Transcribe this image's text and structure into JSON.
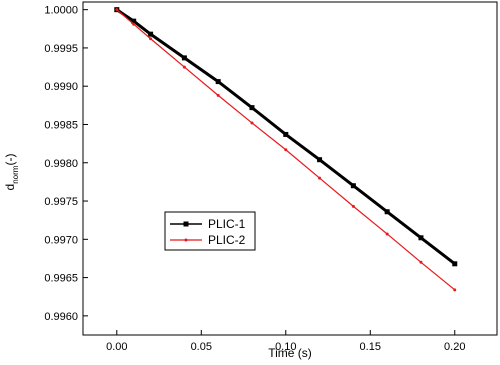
{
  "chart_data": {
    "type": "line",
    "xlabel": "Time (s)",
    "ylabel": [
      "d",
      "norm",
      "(-)"
    ],
    "x": [
      0,
      0.01,
      0.02,
      0.04,
      0.06,
      0.08,
      0.1,
      0.12,
      0.14,
      0.16,
      0.18,
      0.2
    ],
    "series": [
      {
        "name": "PLIC-1",
        "color": "#000000",
        "marker": "square",
        "width": 3,
        "values": [
          1.0,
          0.99985,
          0.99968,
          0.99937,
          0.99906,
          0.99872,
          0.99837,
          0.99804,
          0.9977,
          0.99736,
          0.99702,
          0.99668
        ]
      },
      {
        "name": "PLIC-2",
        "color": "#e8191c",
        "marker": "dot",
        "width": 1.2,
        "values": [
          1.0,
          0.99981,
          0.99962,
          0.99925,
          0.99888,
          0.99852,
          0.99817,
          0.9978,
          0.99743,
          0.99707,
          0.9967,
          0.99634
        ]
      }
    ],
    "xlim": [
      -0.02,
      0.225
    ],
    "ylim": [
      0.99575,
      1.0001
    ],
    "xticks": [
      {
        "value": 0,
        "label": "0.00"
      },
      {
        "value": 0.05,
        "label": "0.05"
      },
      {
        "value": 0.1,
        "label": "0.10"
      },
      {
        "value": 0.15,
        "label": "0.15"
      },
      {
        "value": 0.2,
        "label": "0.20"
      }
    ],
    "yticks": [
      {
        "value": 0.996,
        "label": "0.9960"
      },
      {
        "value": 0.9965,
        "label": "0.9965"
      },
      {
        "value": 0.997,
        "label": "0.9970"
      },
      {
        "value": 0.9975,
        "label": "0.9975"
      },
      {
        "value": 0.998,
        "label": "0.9980"
      },
      {
        "value": 0.9985,
        "label": "0.9985"
      },
      {
        "value": 0.999,
        "label": "0.9990"
      },
      {
        "value": 0.9995,
        "label": "0.9995"
      },
      {
        "value": 1.0,
        "label": "1.0000"
      }
    ],
    "grid": false
  }
}
